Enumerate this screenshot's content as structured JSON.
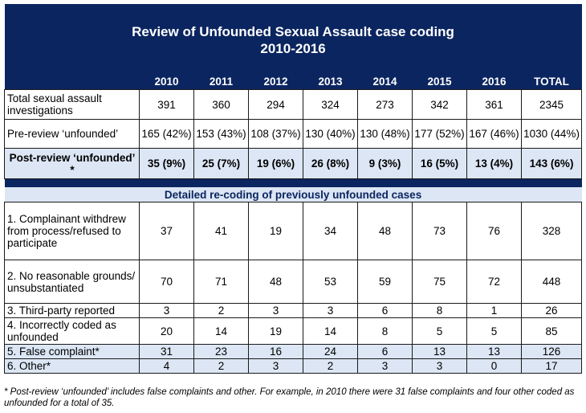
{
  "title": {
    "line1": "Review of Unfounded Sexual Assault case coding",
    "line2": "2010-2016"
  },
  "years": [
    "2010",
    "2011",
    "2012",
    "2013",
    "2014",
    "2015",
    "2016",
    "TOTAL"
  ],
  "summary_rows": [
    {
      "label": "Total sexual assault investigations",
      "values": [
        "391",
        "360",
        "294",
        "324",
        "273",
        "342",
        "361",
        "2345"
      ]
    },
    {
      "label": "Pre-review ‘unfounded’",
      "values": [
        "165 (42%)",
        "153 (43%)",
        "108 (37%)",
        "130 (40%)",
        "130 (48%)",
        "177 (52%)",
        "167 (46%)",
        "1030 (44%)"
      ]
    },
    {
      "label": "Post-review ‘unfounded’ *",
      "values": [
        "35 (9%)",
        "25 (7%)",
        "19 (6%)",
        "26 (8%)",
        "9 (3%)",
        "16 (5%)",
        "13 (4%)",
        "143 (6%)"
      ]
    }
  ],
  "detail_heading": "Detailed re-coding of previously unfounded cases",
  "detail_rows": [
    {
      "label": "1. Complainant withdrew from process/refused to participate",
      "values": [
        "37",
        "41",
        "19",
        "34",
        "48",
        "73",
        "76",
        "328"
      ]
    },
    {
      "label": "2. No reasonable grounds/ unsubstantiated",
      "values": [
        "70",
        "71",
        "48",
        "53",
        "59",
        "75",
        "72",
        "448"
      ]
    },
    {
      "label": "3. Third-party reported",
      "values": [
        "3",
        "2",
        "3",
        "3",
        "6",
        "8",
        "1",
        "26"
      ]
    },
    {
      "label": "4. Incorrectly coded as unfounded",
      "values": [
        "20",
        "14",
        "19",
        "14",
        "8",
        "5",
        "5",
        "85"
      ]
    },
    {
      "label": "5. False complaint*",
      "values": [
        "31",
        "23",
        "16",
        "24",
        "6",
        "13",
        "13",
        "126"
      ]
    },
    {
      "label": "6. Other*",
      "values": [
        "4",
        "2",
        "3",
        "2",
        "3",
        "3",
        "0",
        "17"
      ]
    }
  ],
  "footnote": "* Post-review ‘unfounded’ includes false complaints and other. For example, in 2010 there were 31 false complaints and four other coded as unfounded for a total of 35."
}
